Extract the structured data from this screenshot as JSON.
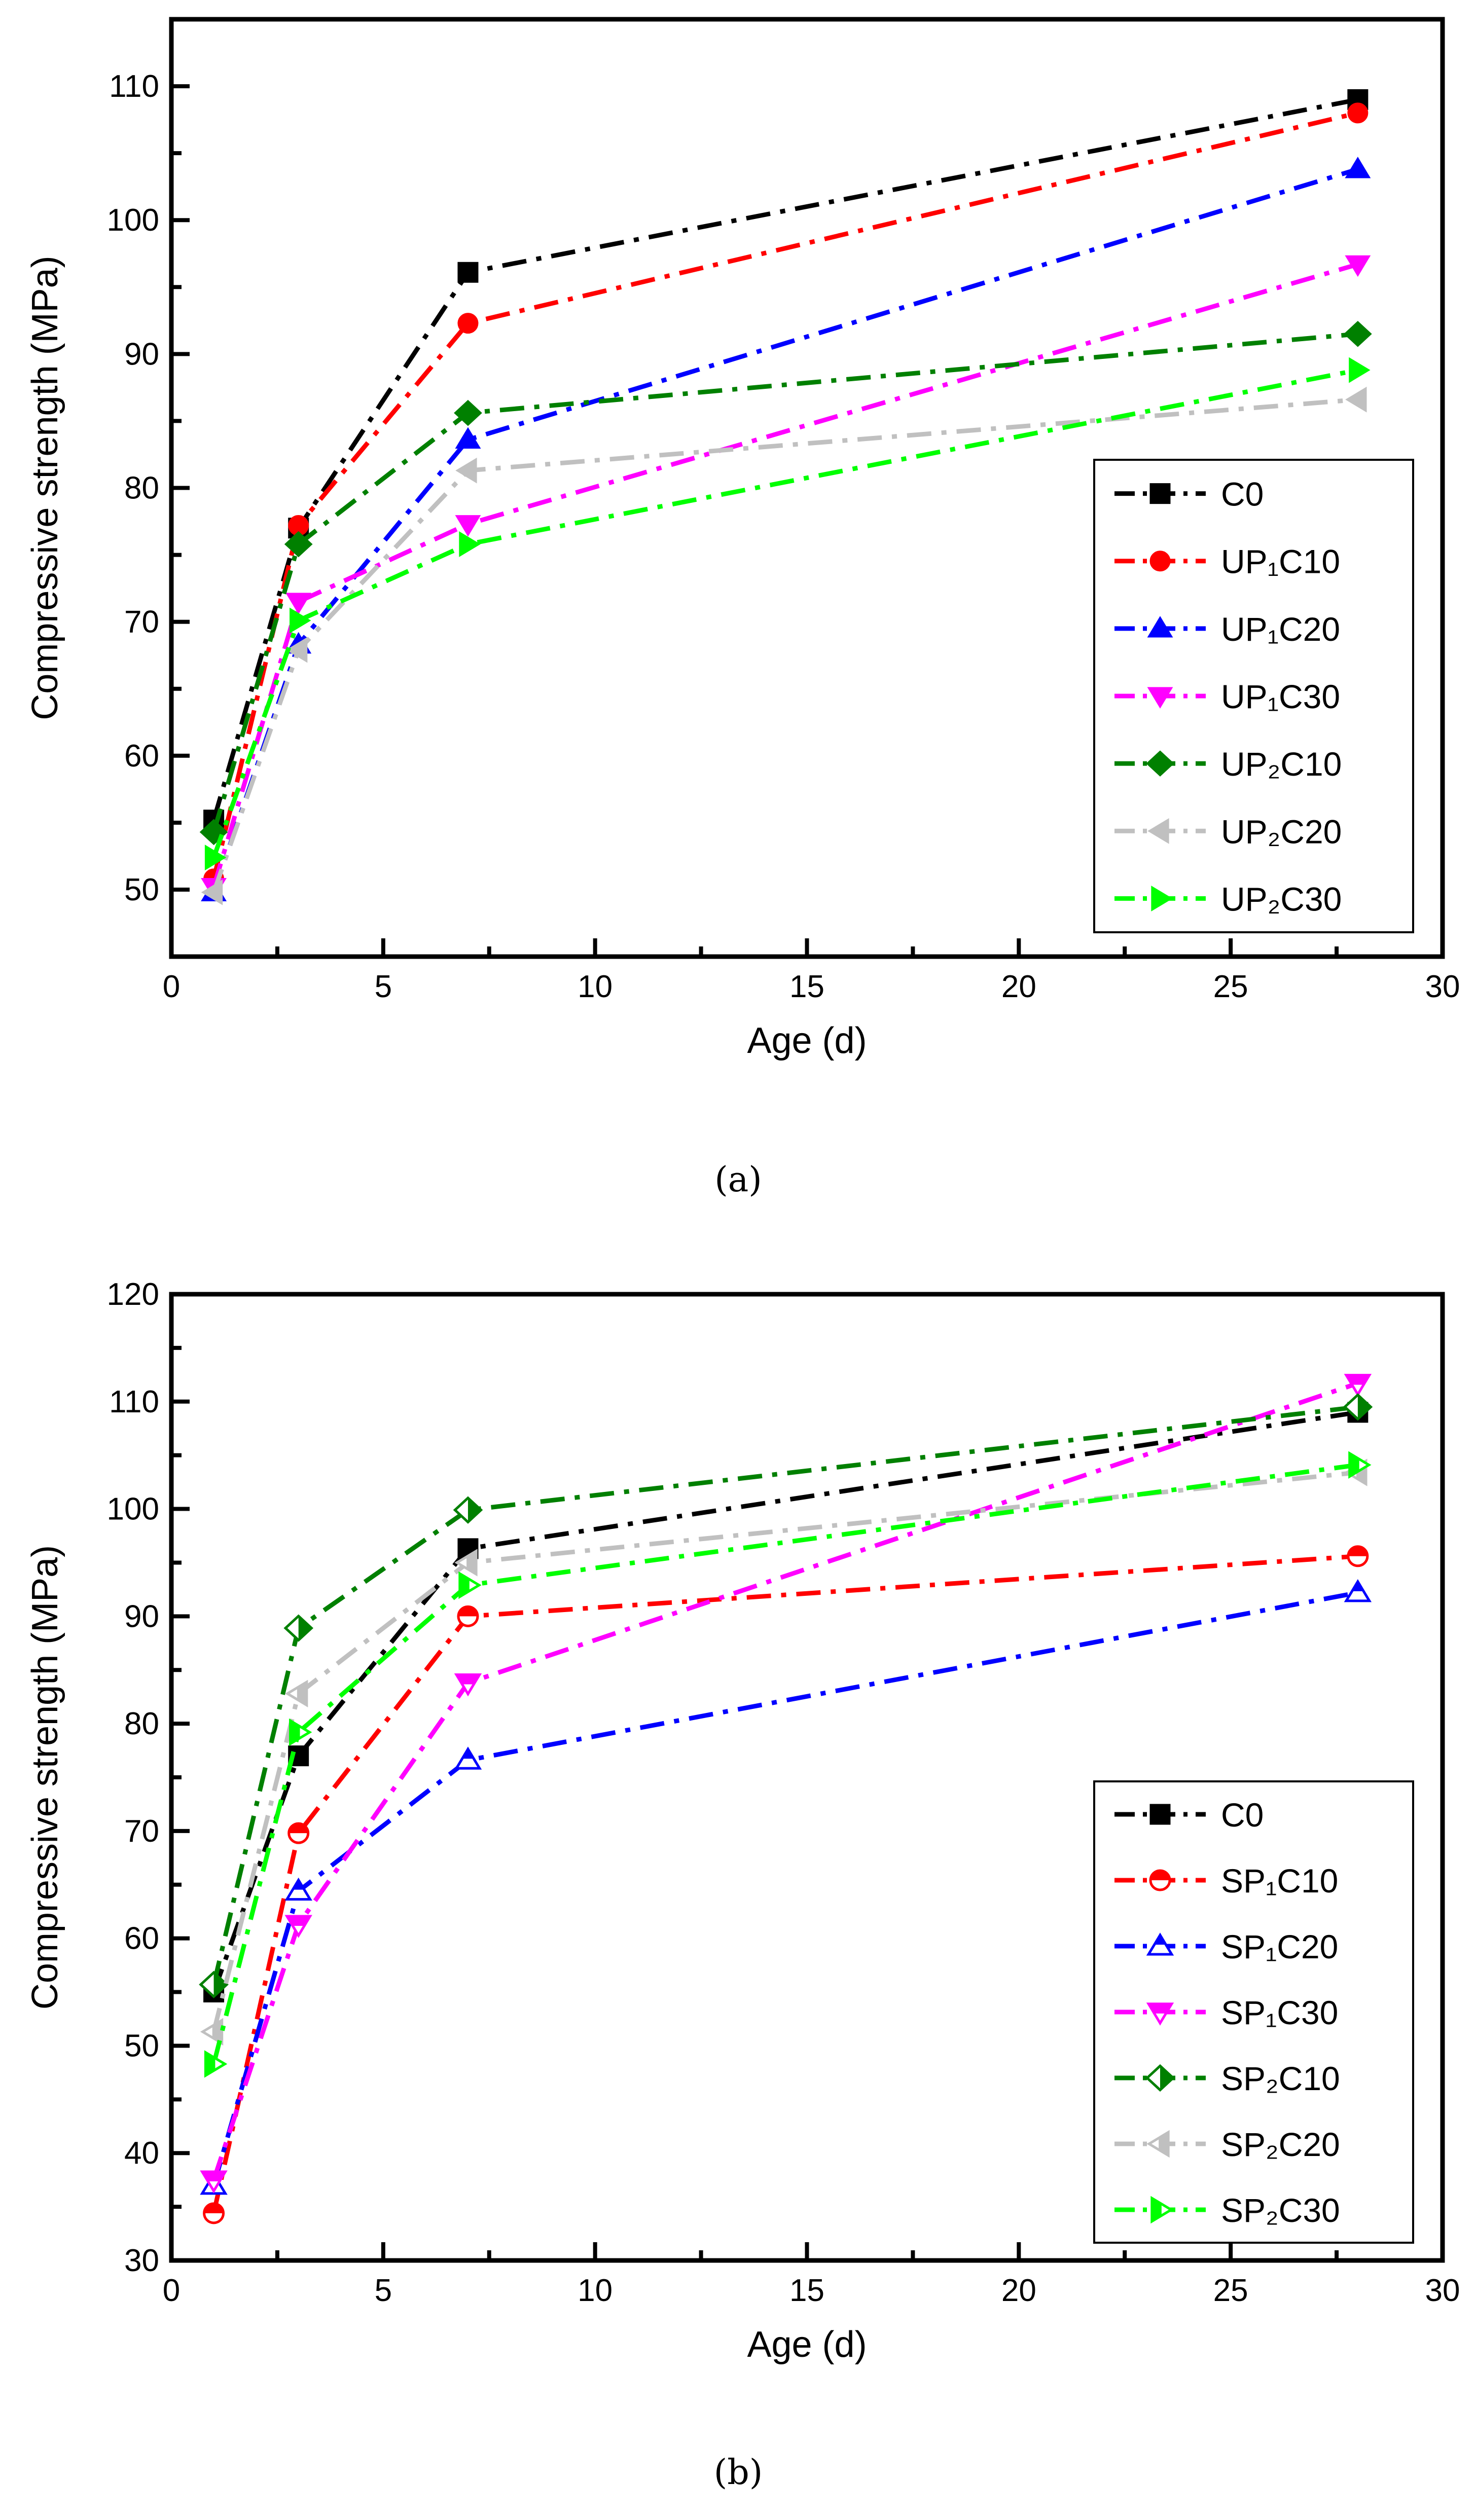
{
  "chart_data": [
    {
      "type": "line",
      "caption": "(a)",
      "xlabel": "Age (d)",
      "ylabel": "Compressive strength (MPa)",
      "xlim": [
        0,
        30
      ],
      "ylim": [
        45,
        115
      ],
      "xticks": [
        0,
        5,
        10,
        15,
        20,
        25,
        30
      ],
      "yticks": [
        50,
        60,
        70,
        80,
        90,
        100,
        110
      ],
      "legend_position": "bottom-right",
      "x": [
        1,
        3,
        7,
        28
      ],
      "series": [
        {
          "name": "C0",
          "color": "#000000",
          "marker": "square",
          "fill": "full",
          "values": [
            55.2,
            77.0,
            96.1,
            109.0
          ]
        },
        {
          "name": "UP₁C10",
          "color": "#ff0000",
          "marker": "circle",
          "fill": "full",
          "values": [
            50.8,
            77.2,
            92.3,
            108.0
          ]
        },
        {
          "name": "UP₁C20",
          "color": "#0000ff",
          "marker": "triangle-up",
          "fill": "full",
          "values": [
            49.8,
            68.3,
            83.6,
            103.8
          ]
        },
        {
          "name": "UP₁C30",
          "color": "#ff00ff",
          "marker": "triangle-down",
          "fill": "full",
          "values": [
            50.2,
            71.5,
            77.3,
            96.7
          ]
        },
        {
          "name": "UP₂C10",
          "color": "#008000",
          "marker": "diamond",
          "fill": "full",
          "values": [
            54.3,
            75.8,
            85.6,
            91.5
          ]
        },
        {
          "name": "UP₂C20",
          "color": "#c0c0c0",
          "marker": "triangle-left",
          "fill": "full",
          "values": [
            49.8,
            67.9,
            81.3,
            86.6
          ]
        },
        {
          "name": "UP₂C30",
          "color": "#00ff00",
          "marker": "triangle-right",
          "fill": "full",
          "values": [
            52.4,
            70.1,
            75.8,
            88.8
          ]
        }
      ]
    },
    {
      "type": "line",
      "caption": "(b)",
      "xlabel": "Age (d)",
      "ylabel": "Compressive strength (MPa)",
      "xlim": [
        0,
        30
      ],
      "ylim": [
        30,
        120
      ],
      "xticks": [
        0,
        5,
        10,
        15,
        20,
        25,
        30
      ],
      "yticks": [
        30,
        40,
        50,
        60,
        70,
        80,
        90,
        100,
        110,
        120
      ],
      "legend_position": "bottom-right",
      "x": [
        1,
        3,
        7,
        28
      ],
      "series": [
        {
          "name": "C0",
          "color": "#000000",
          "marker": "square",
          "fill": "full",
          "values": [
            55.0,
            77.0,
            96.3,
            109.0
          ]
        },
        {
          "name": "SP₁C10",
          "color": "#ff0000",
          "marker": "circle",
          "fill": "top",
          "values": [
            34.4,
            69.8,
            90.0,
            95.6
          ]
        },
        {
          "name": "SP₁C20",
          "color": "#0000ff",
          "marker": "triangle-up",
          "fill": "top",
          "values": [
            37.0,
            64.4,
            76.6,
            92.2
          ]
        },
        {
          "name": "SP₁C30",
          "color": "#ff00ff",
          "marker": "triangle-down",
          "fill": "top",
          "values": [
            37.5,
            61.3,
            83.8,
            111.7
          ]
        },
        {
          "name": "SP₂C10",
          "color": "#008000",
          "marker": "diamond",
          "fill": "right",
          "values": [
            55.7,
            88.9,
            99.9,
            109.5
          ]
        },
        {
          "name": "SP₂C20",
          "color": "#c0c0c0",
          "marker": "triangle-left",
          "fill": "right",
          "values": [
            51.3,
            82.8,
            95.0,
            103.4
          ]
        },
        {
          "name": "SP₂C30",
          "color": "#00ff00",
          "marker": "triangle-right",
          "fill": "left",
          "values": [
            48.3,
            79.2,
            92.9,
            104.1
          ]
        }
      ]
    }
  ]
}
